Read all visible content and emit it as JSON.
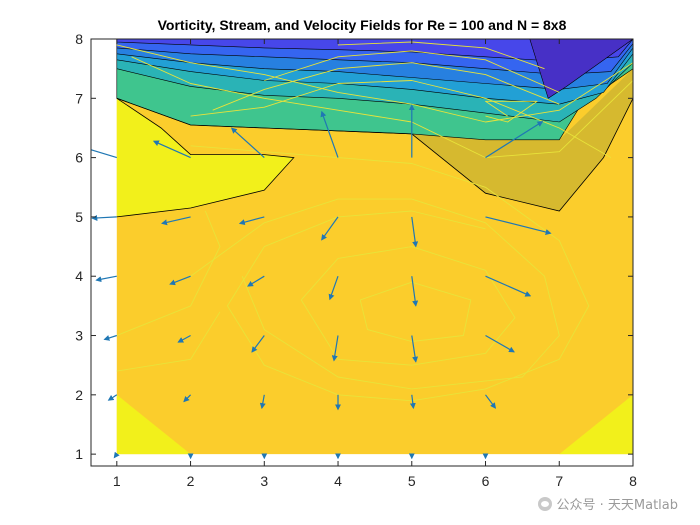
{
  "chart_data": {
    "type": "contour+quiver",
    "title": "Vorticity, Stream, and Velocity Fields for Re = 100 and N = 8x8",
    "xlabel": "",
    "ylabel": "",
    "xlim": [
      0.65,
      8
    ],
    "ylim": [
      0.8,
      8
    ],
    "xticks": [
      1,
      2,
      3,
      4,
      5,
      6,
      7,
      8
    ],
    "yticks": [
      1,
      2,
      3,
      4,
      5,
      6,
      7,
      8
    ],
    "grid": false,
    "colors": {
      "base_fill": "#fbcd2c",
      "high_fill": "#f2f01b",
      "band_fill": "#d6b92f",
      "band_levels": [
        "#3fc58e",
        "#2ab3b6",
        "#22a0d5",
        "#2780e0",
        "#3565f0",
        "#4747ea",
        "#4730c6"
      ],
      "stream_line": "#e8e33a",
      "arrow": "#1f77b4",
      "contour_edge": "#000000"
    },
    "vorticity_regions": {
      "upper_bands": [
        [
          [
            1,
            7
          ],
          [
            2,
            6.55
          ],
          [
            3,
            6.5
          ],
          [
            4,
            6.45
          ],
          [
            5,
            6.4
          ],
          [
            6,
            6.3
          ],
          [
            7,
            6.3
          ],
          [
            7.3,
            6.9
          ],
          [
            8,
            7.5
          ],
          [
            8,
            8
          ],
          [
            1,
            8
          ]
        ],
        [
          [
            1,
            7.5
          ],
          [
            2,
            7.2
          ],
          [
            3,
            7.05
          ],
          [
            4,
            7.0
          ],
          [
            5,
            6.9
          ],
          [
            6,
            6.75
          ],
          [
            7,
            6.6
          ],
          [
            7.5,
            7
          ],
          [
            8,
            7.6
          ],
          [
            8,
            8
          ],
          [
            1,
            8
          ]
        ],
        [
          [
            1,
            7.65
          ],
          [
            2,
            7.45
          ],
          [
            3,
            7.3
          ],
          [
            4,
            7.25
          ],
          [
            5,
            7.15
          ],
          [
            6,
            7.0
          ],
          [
            7,
            6.9
          ],
          [
            7.6,
            7.1
          ],
          [
            8,
            7.75
          ],
          [
            8,
            8
          ],
          [
            1,
            8
          ]
        ],
        [
          [
            1,
            7.75
          ],
          [
            2,
            7.6
          ],
          [
            3,
            7.5
          ],
          [
            4,
            7.45
          ],
          [
            5,
            7.35
          ],
          [
            6,
            7.25
          ],
          [
            7,
            7.15
          ],
          [
            7.65,
            7.25
          ],
          [
            8,
            7.85
          ],
          [
            8,
            8
          ],
          [
            1,
            8
          ]
        ],
        [
          [
            1,
            7.85
          ],
          [
            2,
            7.75
          ],
          [
            3,
            7.7
          ],
          [
            4,
            7.65
          ],
          [
            5,
            7.6
          ],
          [
            6,
            7.5
          ],
          [
            7,
            7.4
          ],
          [
            7.7,
            7.45
          ],
          [
            8,
            7.92
          ],
          [
            8,
            8
          ],
          [
            1,
            8
          ]
        ],
        [
          [
            1,
            7.95
          ],
          [
            2,
            7.9
          ],
          [
            3,
            7.85
          ],
          [
            4,
            7.82
          ],
          [
            5,
            7.78
          ],
          [
            6,
            7.7
          ],
          [
            7,
            7.62
          ],
          [
            7.8,
            7.7
          ],
          [
            8,
            8
          ],
          [
            1,
            8
          ]
        ],
        [
          [
            6.6,
            8
          ],
          [
            6.85,
            7
          ],
          [
            7.1,
            7.2
          ],
          [
            8,
            8
          ]
        ]
      ],
      "band_region": [
        [
          1,
          7
        ],
        [
          2,
          6.55
        ],
        [
          3,
          6.5
        ],
        [
          4,
          6.45
        ],
        [
          5,
          6.4
        ],
        [
          6,
          5.4
        ],
        [
          7,
          5.1
        ],
        [
          7.6,
          6
        ],
        [
          8,
          7
        ],
        [
          8,
          7.5
        ],
        [
          7,
          6.3
        ],
        [
          6,
          6.3
        ],
        [
          5,
          6.4
        ],
        [
          4,
          6.45
        ],
        [
          3,
          6.5
        ],
        [
          2,
          6.55
        ]
      ],
      "high_regions": [
        [
          [
            1,
            7
          ],
          [
            1.6,
            6.5
          ],
          [
            2,
            6.05
          ],
          [
            3,
            6.05
          ],
          [
            3.4,
            6
          ],
          [
            3,
            5.45
          ],
          [
            2,
            5.15
          ],
          [
            1,
            5
          ]
        ],
        [
          [
            1,
            2
          ],
          [
            2,
            1
          ],
          [
            1,
            1
          ]
        ],
        [
          [
            7,
            1
          ],
          [
            8,
            1
          ],
          [
            8,
            2
          ]
        ]
      ],
      "contour_edges": [
        [
          [
            1,
            5
          ],
          [
            2,
            5.15
          ],
          [
            3,
            5.45
          ],
          [
            3.4,
            6
          ],
          [
            3,
            6.05
          ],
          [
            2,
            6.05
          ],
          [
            1.6,
            6.5
          ],
          [
            1,
            7
          ]
        ],
        [
          [
            1,
            7
          ],
          [
            2,
            6.55
          ],
          [
            3,
            6.5
          ],
          [
            4,
            6.45
          ],
          [
            5,
            6.4
          ],
          [
            6,
            5.4
          ],
          [
            7,
            5.1
          ],
          [
            7.6,
            6
          ],
          [
            8,
            7
          ]
        ]
      ]
    },
    "streamlines": [
      [
        [
          1,
          7.9
        ],
        [
          2,
          7.6
        ],
        [
          3,
          7.4
        ],
        [
          4,
          7.1
        ],
        [
          5,
          6.9
        ],
        [
          6,
          6.6
        ],
        [
          7,
          6.8
        ],
        [
          8,
          7.6
        ]
      ],
      [
        [
          1.2,
          7.7
        ],
        [
          2,
          7.25
        ],
        [
          3,
          7.0
        ],
        [
          4,
          6.8
        ],
        [
          5,
          6.6
        ],
        [
          6,
          6.0
        ],
        [
          7,
          6.1
        ],
        [
          8,
          7.3
        ]
      ],
      [
        [
          2,
          6.7
        ],
        [
          3,
          6.85
        ],
        [
          4,
          7.25
        ],
        [
          5,
          7.3
        ],
        [
          6,
          7.0
        ],
        [
          7,
          6.5
        ],
        [
          7.7,
          6
        ]
      ],
      [
        [
          2.3,
          6.8
        ],
        [
          3,
          7.15
        ],
        [
          4,
          7.5
        ],
        [
          5,
          7.6
        ],
        [
          6,
          7.4
        ],
        [
          7,
          6.9
        ]
      ],
      [
        [
          3,
          7.3
        ],
        [
          4,
          7.7
        ],
        [
          5,
          7.8
        ],
        [
          6,
          7.65
        ],
        [
          7,
          7.1
        ]
      ],
      [
        [
          4,
          7.9
        ],
        [
          5,
          7.95
        ],
        [
          6,
          7.85
        ],
        [
          6.8,
          7.5
        ]
      ],
      [
        [
          6,
          6.7
        ],
        [
          6.3,
          6.6
        ],
        [
          6.7,
          6.95
        ],
        [
          6,
          6.95
        ],
        [
          6.3,
          6.7
        ]
      ],
      [
        [
          2,
          6.2
        ],
        [
          3,
          6.1
        ],
        [
          4,
          6.0
        ],
        [
          5,
          5.9
        ],
        [
          6,
          5.5
        ],
        [
          7,
          4.6
        ],
        [
          7.4,
          3.5
        ],
        [
          7,
          2.6
        ],
        [
          6,
          2.1
        ],
        [
          5,
          1.9
        ],
        [
          4,
          2.0
        ],
        [
          3,
          2.5
        ],
        [
          2.5,
          3.5
        ],
        [
          3,
          4.5
        ],
        [
          4,
          5.0
        ],
        [
          5,
          5.1
        ],
        [
          6,
          4.8
        ]
      ],
      [
        [
          2,
          4
        ],
        [
          3,
          4.9
        ],
        [
          4,
          5.3
        ],
        [
          5,
          5.3
        ],
        [
          6,
          4.9
        ],
        [
          6.8,
          4.0
        ],
        [
          7,
          3.0
        ],
        [
          6.5,
          2.3
        ],
        [
          5,
          2.1
        ],
        [
          4,
          2.3
        ],
        [
          3,
          3.1
        ],
        [
          2.7,
          4
        ]
      ],
      [
        [
          3.5,
          3.6
        ],
        [
          4,
          4.3
        ],
        [
          5,
          4.5
        ],
        [
          6,
          4.1
        ],
        [
          6.4,
          3.3
        ],
        [
          6,
          2.7
        ],
        [
          5,
          2.5
        ],
        [
          4,
          2.6
        ],
        [
          3.5,
          3.6
        ]
      ],
      [
        [
          4.3,
          3.6
        ],
        [
          5,
          3.9
        ],
        [
          5.8,
          3.6
        ],
        [
          5.7,
          3.0
        ],
        [
          5,
          2.9
        ],
        [
          4.4,
          3.1
        ],
        [
          4.3,
          3.6
        ]
      ],
      [
        [
          1,
          3
        ],
        [
          2,
          3.5
        ],
        [
          2.4,
          4.5
        ],
        [
          2.2,
          5.1
        ]
      ],
      [
        [
          1,
          2.4
        ],
        [
          2,
          2.6
        ],
        [
          2.4,
          3.4
        ]
      ]
    ],
    "velocity_vectors": [
      {
        "x": 1,
        "y": 1,
        "u": -0.03,
        "v": -0.05
      },
      {
        "x": 2,
        "y": 1,
        "u": 0,
        "v": -0.06
      },
      {
        "x": 3,
        "y": 1,
        "u": 0,
        "v": -0.06
      },
      {
        "x": 4,
        "y": 1,
        "u": 0,
        "v": -0.06
      },
      {
        "x": 5,
        "y": 1,
        "u": 0,
        "v": -0.06
      },
      {
        "x": 6,
        "y": 1,
        "u": 0,
        "v": -0.06
      },
      {
        "x": 1,
        "y": 2,
        "u": -0.1,
        "v": -0.08
      },
      {
        "x": 2,
        "y": 2,
        "u": -0.08,
        "v": -0.1
      },
      {
        "x": 3,
        "y": 2,
        "u": -0.03,
        "v": -0.2
      },
      {
        "x": 4,
        "y": 2,
        "u": 0,
        "v": -0.22
      },
      {
        "x": 5,
        "y": 2,
        "u": 0.02,
        "v": -0.2
      },
      {
        "x": 6,
        "y": 2,
        "u": 0.12,
        "v": -0.2
      },
      {
        "x": 1,
        "y": 3,
        "u": -0.15,
        "v": -0.06
      },
      {
        "x": 2,
        "y": 3,
        "u": -0.15,
        "v": -0.1
      },
      {
        "x": 3,
        "y": 3,
        "u": -0.15,
        "v": -0.25
      },
      {
        "x": 4,
        "y": 3,
        "u": -0.05,
        "v": -0.38
      },
      {
        "x": 5,
        "y": 3,
        "u": 0.05,
        "v": -0.4
      },
      {
        "x": 6,
        "y": 3,
        "u": 0.35,
        "v": -0.25
      },
      {
        "x": 1,
        "y": 4,
        "u": -0.25,
        "v": -0.06
      },
      {
        "x": 2,
        "y": 4,
        "u": -0.25,
        "v": -0.12
      },
      {
        "x": 3,
        "y": 4,
        "u": -0.2,
        "v": -0.15
      },
      {
        "x": 4,
        "y": 4,
        "u": -0.1,
        "v": -0.35
      },
      {
        "x": 5,
        "y": 4,
        "u": 0.05,
        "v": -0.45
      },
      {
        "x": 6,
        "y": 4,
        "u": 0.55,
        "v": -0.3
      },
      {
        "x": 1,
        "y": 5,
        "u": -0.3,
        "v": -0.02
      },
      {
        "x": 2,
        "y": 5,
        "u": -0.35,
        "v": -0.1
      },
      {
        "x": 3,
        "y": 5,
        "u": -0.3,
        "v": -0.1
      },
      {
        "x": 4,
        "y": 5,
        "u": -0.2,
        "v": -0.35
      },
      {
        "x": 5,
        "y": 5,
        "u": 0.05,
        "v": -0.45
      },
      {
        "x": 6,
        "y": 5,
        "u": 0.8,
        "v": -0.25
      },
      {
        "x": 1,
        "y": 6,
        "u": -0.4,
        "v": 0.15
      },
      {
        "x": 2,
        "y": 6,
        "u": -0.45,
        "v": 0.25
      },
      {
        "x": 3,
        "y": 6,
        "u": -0.4,
        "v": 0.45
      },
      {
        "x": 4,
        "y": 6,
        "u": -0.2,
        "v": 0.7
      },
      {
        "x": 5,
        "y": 6,
        "u": 0,
        "v": 0.8
      },
      {
        "x": 6,
        "y": 6,
        "u": 0.7,
        "v": 0.55
      }
    ]
  },
  "watermark": {
    "text": "公众号 · 天天Matlab",
    "icon": "wechat-icon"
  }
}
